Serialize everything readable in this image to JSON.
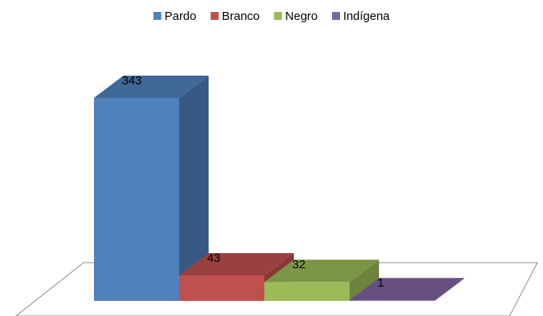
{
  "chart_data": {
    "type": "bar3d",
    "categories": [
      null
    ],
    "series": [
      {
        "name": "Pardo",
        "color": "#4f81bd",
        "values": [
          343
        ]
      },
      {
        "name": "Branco",
        "color": "#c0504d",
        "values": [
          43
        ]
      },
      {
        "name": "Negro",
        "color": "#9bbb59",
        "values": [
          32
        ]
      },
      {
        "name": "Indígena",
        "color": "#8064a2",
        "values": [
          1
        ]
      }
    ],
    "legend": "top"
  }
}
